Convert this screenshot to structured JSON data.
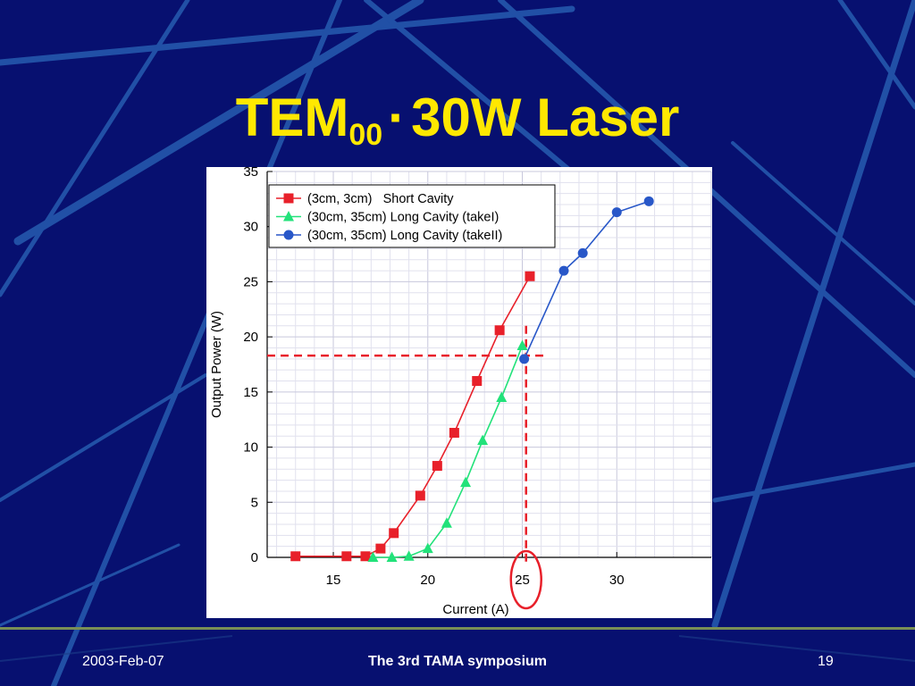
{
  "slide": {
    "title_main": "TEM",
    "title_sub": "00",
    "title_sep": "·",
    "title_rest": "30W  Laser",
    "colors": {
      "background": "#071070",
      "title": "#FFE800",
      "footer_text": "#ffffff"
    }
  },
  "footer": {
    "date": "2003-Feb-07",
    "center": "The 3rd TAMA symposium",
    "page": "19"
  },
  "chart_data": {
    "type": "line",
    "xlabel": "Current (A)",
    "ylabel": "Output Power (W)",
    "xlim": [
      11.5,
      35
    ],
    "ylim": [
      0,
      35
    ],
    "xticks": [
      15,
      20,
      25,
      30
    ],
    "yticks": [
      0,
      5,
      10,
      15,
      20,
      25,
      30,
      35
    ],
    "grid": true,
    "legend_position": "top-left",
    "series": [
      {
        "name": "(3cm, 3cm)   Short Cavity",
        "color": "#E8202A",
        "marker": "square",
        "x": [
          13.0,
          15.7,
          16.7,
          17.5,
          18.2,
          19.6,
          20.5,
          21.4,
          22.6,
          23.8,
          25.4
        ],
        "y": [
          0.1,
          0.1,
          0.1,
          0.8,
          2.2,
          5.6,
          8.3,
          11.3,
          16.0,
          20.6,
          25.5
        ]
      },
      {
        "name": "(30cm, 35cm) Long Cavity (takeI)",
        "color": "#22E27A",
        "marker": "triangle",
        "x": [
          17.1,
          18.1,
          19.0,
          20.0,
          21.0,
          22.0,
          22.9,
          23.9,
          25.0
        ],
        "y": [
          0.0,
          0.0,
          0.1,
          0.8,
          3.1,
          6.8,
          10.6,
          14.5,
          19.2
        ]
      },
      {
        "name": "(30cm, 35cm) Long Cavity (takeII)",
        "color": "#2857C8",
        "marker": "circle",
        "x": [
          25.1,
          27.2,
          28.2,
          30.0,
          31.7
        ],
        "y": [
          18.0,
          26.0,
          27.6,
          31.3,
          32.3
        ]
      }
    ],
    "reference_lines": {
      "horizontal_y": 18.3,
      "vertical_x": 25.2,
      "color": "#E8202A"
    },
    "highlight_circle_x": 25.2
  }
}
